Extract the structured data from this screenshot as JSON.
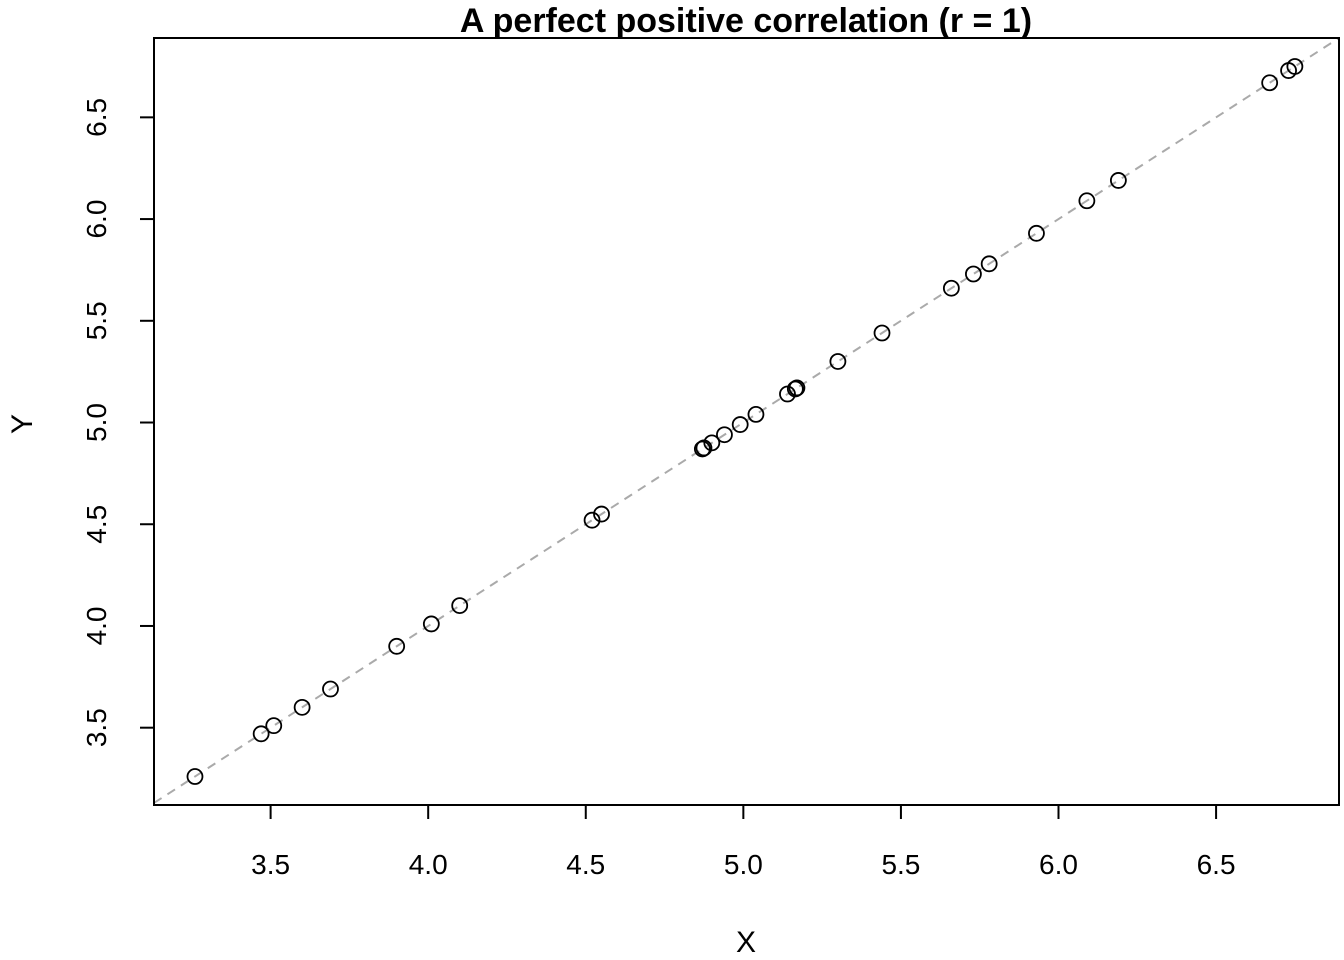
{
  "chart_data": {
    "type": "scatter",
    "title": "A perfect positive correlation (r = 1)",
    "xlabel": "X",
    "ylabel": "Y",
    "xlim": [
      3.13,
      6.89
    ],
    "ylim": [
      3.12,
      6.89
    ],
    "xticks": [
      3.5,
      4.0,
      4.5,
      5.0,
      5.5,
      6.0,
      6.5
    ],
    "yticks": [
      3.5,
      4.0,
      4.5,
      5.0,
      5.5,
      6.0,
      6.5
    ],
    "xtick_labels": [
      "3.5",
      "4.0",
      "4.5",
      "5.0",
      "5.5",
      "6.0",
      "6.5"
    ],
    "ytick_labels": [
      "3.5",
      "4.0",
      "4.5",
      "5.0",
      "5.5",
      "6.0",
      "6.5"
    ],
    "reference_line": {
      "style": "dashed",
      "color": "#aaaaaa",
      "slope": 1,
      "intercept": 0
    },
    "series": [
      {
        "name": "points",
        "marker": "open-circle",
        "x": [
          3.26,
          3.47,
          3.51,
          3.6,
          3.69,
          3.9,
          4.01,
          4.1,
          4.52,
          4.55,
          4.87,
          4.875,
          4.9,
          4.94,
          4.99,
          5.04,
          5.14,
          5.165,
          5.17,
          5.3,
          5.44,
          5.66,
          5.73,
          5.78,
          5.93,
          6.09,
          6.19,
          6.67,
          6.73,
          6.75
        ],
        "y": [
          3.26,
          3.47,
          3.51,
          3.6,
          3.69,
          3.9,
          4.01,
          4.1,
          4.52,
          4.55,
          4.87,
          4.875,
          4.9,
          4.94,
          4.99,
          5.04,
          5.14,
          5.165,
          5.17,
          5.3,
          5.44,
          5.66,
          5.73,
          5.78,
          5.93,
          6.09,
          6.19,
          6.67,
          6.73,
          6.75
        ]
      }
    ]
  }
}
